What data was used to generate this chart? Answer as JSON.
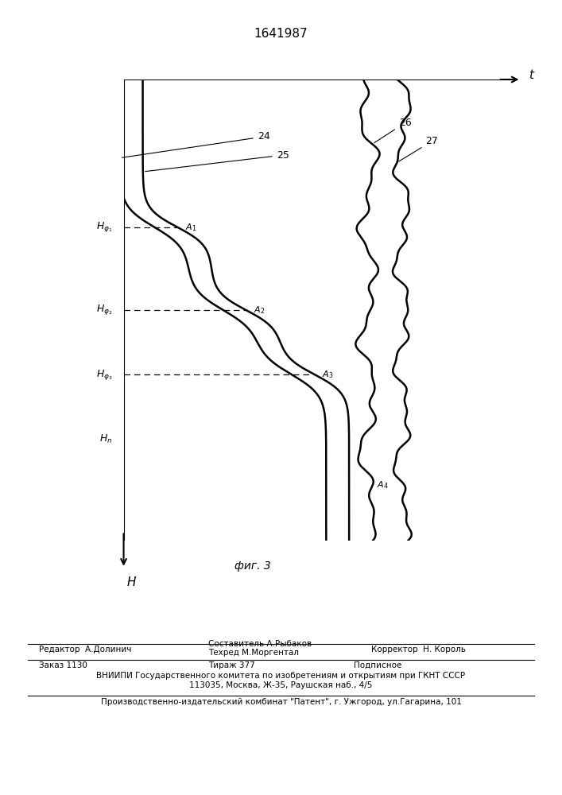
{
  "title": "1641987",
  "fig_label": "фиг. 3",
  "background_color": "#ffffff",
  "h_phi1_label": "Hφ₁",
  "h_phi2_label": "Hφ₂",
  "h_phi3_label": "Hφ₃",
  "h_n_label": "Hₙ",
  "t_label": "t",
  "H_label": "H",
  "curve_labels": [
    "24",
    "25",
    "26",
    "27"
  ],
  "point_labels": [
    "A₁",
    "A₂",
    "A₃",
    "A₄"
  ],
  "footer_editor": "Редактор  А.Долинич",
  "footer_author": "Составитель А.Рыбаков",
  "footer_tech": "Техред М.Моргентал",
  "footer_corrector": "Корректор  Н. Король",
  "footer_order": "Заказ 1130",
  "footer_tirazh": "Тираж 377",
  "footer_podp": "Подписное",
  "footer_vniiipi": "ВНИИПИ Государственного комитета по изобретениям и открытиям при ГКНТ СССР",
  "footer_address": "113035, Москва, Ж-35, Раушская наб., 4/5",
  "footer_patent": "Производственно-издательский комбинат \"Патент\", г. Ужгород, ул.Гагарина, 101"
}
